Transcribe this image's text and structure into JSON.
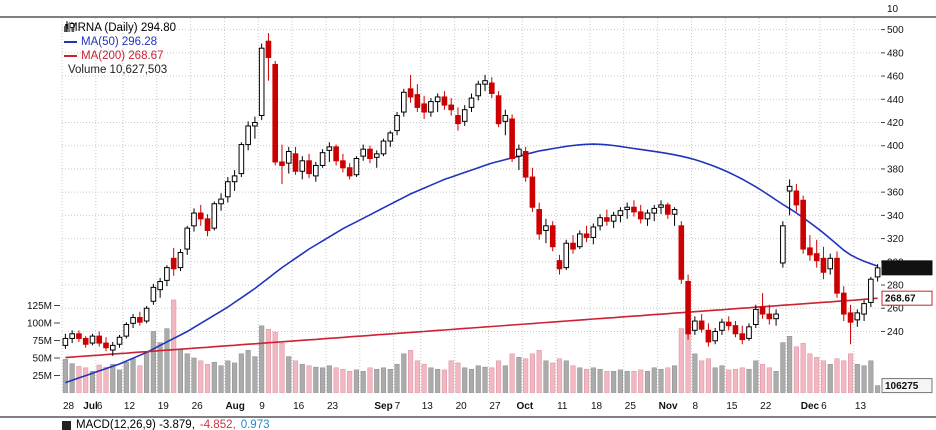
{
  "legend": {
    "symbol_line": "MRNA (Daily) 294.80",
    "ma50_line": "MA(50) 296.28",
    "ma200_line": "MA(200) 268.67",
    "volume_line": "Volume 10,627,503"
  },
  "macd": {
    "part_black": "MACD(12,26,9) -3.879,",
    "part_red": "-4.852,",
    "part_blue": "0.973"
  },
  "axes": {
    "top_stray_label": "10",
    "price_ticks": [
      500,
      480,
      460,
      440,
      420,
      400,
      380,
      360,
      340,
      320,
      300,
      280,
      260,
      240
    ],
    "volume_ticks": [
      "125M",
      "100M",
      "75M",
      "50M",
      "25M"
    ],
    "x_ticks": [
      {
        "i": 0,
        "label": "28"
      },
      {
        "i": 3,
        "label": "Jul",
        "bold": true
      },
      {
        "i": 5,
        "label": "6"
      },
      {
        "i": 9,
        "label": "12"
      },
      {
        "i": 14,
        "label": "19"
      },
      {
        "i": 19,
        "label": "26"
      },
      {
        "i": 24,
        "label": "Aug",
        "bold": true
      },
      {
        "i": 29,
        "label": "9"
      },
      {
        "i": 34,
        "label": "16"
      },
      {
        "i": 39,
        "label": "23"
      },
      {
        "i": 46,
        "label": "Sep",
        "bold": true
      },
      {
        "i": 49,
        "label": "7"
      },
      {
        "i": 53,
        "label": "13"
      },
      {
        "i": 58,
        "label": "20"
      },
      {
        "i": 63,
        "label": "27"
      },
      {
        "i": 67,
        "label": "Oct",
        "bold": true
      },
      {
        "i": 73,
        "label": "11"
      },
      {
        "i": 78,
        "label": "18"
      },
      {
        "i": 83,
        "label": "25"
      },
      {
        "i": 88,
        "label": "Nov",
        "bold": true
      },
      {
        "i": 93,
        "label": "8"
      },
      {
        "i": 98,
        "label": "15"
      },
      {
        "i": 103,
        "label": "22"
      },
      {
        "i": 109,
        "label": "Dec",
        "bold": true
      },
      {
        "i": 112,
        "label": "6"
      },
      {
        "i": 117,
        "label": "13"
      }
    ],
    "tags": {
      "last_price": "294.80",
      "ma200": "268.67",
      "volume": "106275"
    }
  },
  "chart_data": {
    "type": "candlestick",
    "symbol": "MRNA",
    "timeframe": "Daily",
    "last_close": 294.8,
    "ylim": [
      187,
      510
    ],
    "candle_fields": [
      "date",
      "open",
      "high",
      "low",
      "close",
      "volume_millions"
    ],
    "candles": [
      [
        "Jun 28",
        228,
        238,
        225,
        234,
        48
      ],
      [
        "Jun 29",
        234,
        241,
        230,
        238,
        42
      ],
      [
        "Jun 30",
        238,
        241,
        231,
        234,
        38
      ],
      [
        "Jul 1",
        234,
        236,
        226,
        229,
        36
      ],
      [
        "Jul 2",
        230,
        238,
        228,
        236,
        31
      ],
      [
        "Jul 6",
        236,
        240,
        227,
        230,
        40
      ],
      [
        "Jul 7",
        230,
        235,
        223,
        226,
        37
      ],
      [
        "Jul 8",
        224,
        231,
        219,
        228,
        41
      ],
      [
        "Jul 9",
        229,
        237,
        226,
        235,
        33
      ],
      [
        "Jul 12",
        236,
        248,
        234,
        246,
        44
      ],
      [
        "Jul 13",
        247,
        255,
        243,
        252,
        49
      ],
      [
        "Jul 14",
        252,
        257,
        245,
        248,
        39
      ],
      [
        "Jul 15",
        249,
        262,
        247,
        260,
        58
      ],
      [
        "Jul 16",
        266,
        281,
        263,
        278,
        88
      ],
      [
        "Jul 19",
        276,
        286,
        269,
        283,
        72
      ],
      [
        "Jul 20",
        284,
        297,
        279,
        295,
        92
      ],
      [
        "Jul 21",
        303,
        312,
        288,
        294,
        133
      ],
      [
        "Jul 22",
        295,
        311,
        292,
        308,
        62
      ],
      [
        "Jul 23",
        311,
        331,
        306,
        329,
        56
      ],
      [
        "Jul 26",
        331,
        346,
        326,
        342,
        50
      ],
      [
        "Jul 27",
        342,
        349,
        331,
        337,
        46
      ],
      [
        "Jul 28",
        337,
        341,
        322,
        327,
        41
      ],
      [
        "Jul 29",
        329,
        352,
        327,
        350,
        44
      ],
      [
        "Jul 30",
        350,
        359,
        344,
        354,
        39
      ],
      [
        "Aug 2",
        356,
        373,
        351,
        369,
        46
      ],
      [
        "Aug 3",
        369,
        379,
        361,
        374,
        43
      ],
      [
        "Aug 4",
        376,
        403,
        373,
        401,
        56
      ],
      [
        "Aug 5",
        401,
        421,
        396,
        417,
        61
      ],
      [
        "Aug 6",
        417,
        425,
        406,
        420,
        52
      ],
      [
        "Aug 9",
        426,
        488,
        422,
        484,
        96
      ],
      [
        "Aug 10",
        490,
        497,
        456,
        476,
        91
      ],
      [
        "Aug 11",
        470,
        473,
        383,
        386,
        87
      ],
      [
        "Aug 12",
        386,
        401,
        367,
        383,
        71
      ],
      [
        "Aug 13",
        385,
        399,
        376,
        395,
        52
      ],
      [
        "Aug 16",
        393,
        399,
        375,
        378,
        46
      ],
      [
        "Aug 17",
        378,
        391,
        371,
        387,
        41
      ],
      [
        "Aug 18",
        387,
        393,
        372,
        376,
        39
      ],
      [
        "Aug 19",
        374,
        386,
        369,
        383,
        37
      ],
      [
        "Aug 20",
        383,
        397,
        381,
        394,
        36
      ],
      [
        "Aug 23",
        396,
        403,
        386,
        399,
        39
      ],
      [
        "Aug 24",
        399,
        401,
        383,
        387,
        36
      ],
      [
        "Aug 25",
        387,
        393,
        377,
        381,
        34
      ],
      [
        "Aug 26",
        381,
        385,
        371,
        374,
        31
      ],
      [
        "Aug 27",
        375,
        391,
        373,
        389,
        33
      ],
      [
        "Aug 30",
        391,
        401,
        387,
        397,
        31
      ],
      [
        "Aug 31",
        397,
        400,
        385,
        389,
        36
      ],
      [
        "Sep 1",
        390,
        396,
        381,
        393,
        34
      ],
      [
        "Sep 2",
        393,
        406,
        391,
        404,
        36
      ],
      [
        "Sep 3",
        404,
        413,
        399,
        411,
        34
      ],
      [
        "Sep 7",
        413,
        429,
        409,
        426,
        41
      ],
      [
        "Sep 8",
        429,
        449,
        425,
        446,
        56
      ],
      [
        "Sep 9",
        449,
        461,
        437,
        442,
        61
      ],
      [
        "Sep 10",
        444,
        453,
        429,
        433,
        46
      ],
      [
        "Sep 13",
        436,
        443,
        423,
        429,
        41
      ],
      [
        "Sep 14",
        429,
        441,
        425,
        438,
        36
      ],
      [
        "Sep 15",
        438,
        445,
        429,
        442,
        34
      ],
      [
        "Sep 16",
        442,
        447,
        431,
        435,
        33
      ],
      [
        "Sep 17",
        435,
        441,
        426,
        431,
        46
      ],
      [
        "Sep 20",
        426,
        433,
        413,
        419,
        43
      ],
      [
        "Sep 21",
        421,
        435,
        417,
        431,
        36
      ],
      [
        "Sep 22",
        433,
        445,
        429,
        441,
        34
      ],
      [
        "Sep 23",
        443,
        456,
        439,
        453,
        39
      ],
      [
        "Sep 24",
        453,
        461,
        447,
        456,
        37
      ],
      [
        "Sep 27",
        454,
        459,
        441,
        445,
        36
      ],
      [
        "Sep 28",
        443,
        447,
        416,
        419,
        46
      ],
      [
        "Sep 29",
        421,
        431,
        409,
        426,
        39
      ],
      [
        "Sep 30",
        423,
        427,
        386,
        389,
        56
      ],
      [
        "Oct 1",
        391,
        401,
        379,
        397,
        51
      ],
      [
        "Oct 4",
        395,
        399,
        369,
        373,
        49
      ],
      [
        "Oct 5",
        373,
        381,
        343,
        347,
        56
      ],
      [
        "Oct 6",
        345,
        351,
        319,
        324,
        61
      ],
      [
        "Oct 7",
        327,
        337,
        316,
        331,
        46
      ],
      [
        "Oct 8",
        331,
        335,
        309,
        313,
        43
      ],
      [
        "Oct 11",
        301,
        306,
        289,
        294,
        49
      ],
      [
        "Oct 12",
        295,
        319,
        293,
        316,
        46
      ],
      [
        "Oct 13",
        316,
        323,
        307,
        311,
        39
      ],
      [
        "Oct 14",
        313,
        327,
        311,
        324,
        36
      ],
      [
        "Oct 15",
        324,
        331,
        317,
        321,
        34
      ],
      [
        "Oct 18",
        321,
        333,
        315,
        330,
        36
      ],
      [
        "Oct 19",
        331,
        341,
        327,
        338,
        34
      ],
      [
        "Oct 20",
        338,
        345,
        331,
        335,
        31
      ],
      [
        "Oct 21",
        335,
        343,
        329,
        340,
        31
      ],
      [
        "Oct 22",
        340,
        347,
        334,
        344,
        33
      ],
      [
        "Oct 25",
        345,
        351,
        337,
        347,
        31
      ],
      [
        "Oct 26",
        347,
        353,
        339,
        343,
        31
      ],
      [
        "Oct 27",
        343,
        349,
        333,
        337,
        33
      ],
      [
        "Oct 28",
        337,
        345,
        331,
        342,
        31
      ],
      [
        "Oct 29",
        342,
        349,
        335,
        346,
        36
      ],
      [
        "Nov 1",
        347,
        353,
        341,
        349,
        34
      ],
      [
        "Nov 2",
        349,
        351,
        337,
        341,
        36
      ],
      [
        "Nov 3",
        341,
        347,
        331,
        345,
        39
      ],
      [
        "Nov 4",
        331,
        335,
        281,
        285,
        92
      ],
      [
        "Nov 5",
        283,
        289,
        233,
        238,
        88
      ],
      [
        "Nov 8",
        241,
        253,
        237,
        249,
        56
      ],
      [
        "Nov 9",
        249,
        255,
        239,
        242,
        46
      ],
      [
        "Nov 10",
        241,
        247,
        227,
        231,
        49
      ],
      [
        "Nov 11",
        232,
        243,
        229,
        240,
        36
      ],
      [
        "Nov 12",
        241,
        251,
        237,
        248,
        39
      ],
      [
        "Nov 15",
        248,
        253,
        241,
        245,
        33
      ],
      [
        "Nov 16",
        245,
        249,
        235,
        238,
        34
      ],
      [
        "Nov 17",
        238,
        245,
        229,
        233,
        36
      ],
      [
        "Nov 18",
        234,
        247,
        232,
        244,
        34
      ],
      [
        "Nov 19",
        246,
        263,
        243,
        259,
        46
      ],
      [
        "Nov 22",
        261,
        273,
        251,
        255,
        41
      ],
      [
        "Nov 23",
        255,
        263,
        246,
        251,
        36
      ],
      [
        "Nov 24",
        251,
        259,
        245,
        255,
        31
      ],
      [
        "Nov 26",
        299,
        335,
        295,
        331,
        72
      ],
      [
        "Nov 29",
        361,
        371,
        340,
        365,
        81
      ],
      [
        "Nov 30",
        361,
        367,
        343,
        349,
        66
      ],
      [
        "Dec 1",
        353,
        357,
        307,
        311,
        71
      ],
      [
        "Dec 2",
        312,
        323,
        301,
        306,
        56
      ],
      [
        "Dec 3",
        307,
        319,
        295,
        301,
        51
      ],
      [
        "Dec 6",
        303,
        313,
        285,
        291,
        46
      ],
      [
        "Dec 7",
        294,
        307,
        289,
        303,
        41
      ],
      [
        "Dec 8",
        303,
        309,
        269,
        273,
        49
      ],
      [
        "Dec 9",
        273,
        279,
        249,
        255,
        46
      ],
      [
        "Dec 10",
        256,
        263,
        229,
        248,
        56
      ],
      [
        "Dec 13",
        250,
        259,
        244,
        256,
        41
      ],
      [
        "Dec 14",
        255,
        267,
        249,
        264,
        39
      ],
      [
        "Dec 15",
        265,
        287,
        261,
        285,
        46
      ],
      [
        "Dec 16",
        287,
        298,
        283,
        294.8,
        10.6
      ]
    ],
    "series": [
      {
        "name": "MA(50)",
        "color": "#2233bb",
        "last_value": 296.28,
        "values": [
          196,
          198,
          200,
          202,
          204,
          206,
          208,
          210,
          212,
          214.5,
          217,
          219.5,
          222,
          225,
          228,
          231,
          234,
          237,
          240,
          243.5,
          247,
          250.5,
          254,
          257.5,
          261,
          265,
          269,
          273,
          277,
          281.5,
          286,
          290.5,
          295,
          299,
          303,
          307,
          311,
          314.5,
          318,
          321.5,
          325,
          328.5,
          331.5,
          334.5,
          337.5,
          340.5,
          343.5,
          346.5,
          349.5,
          352.5,
          355.5,
          358.5,
          361,
          363.5,
          366,
          368.5,
          371,
          373,
          375,
          377,
          379,
          381,
          383,
          385,
          386.5,
          388,
          389.5,
          391,
          392.5,
          394,
          395.5,
          396.5,
          397.5,
          398.5,
          399.5,
          400.2,
          400.8,
          401.2,
          401.4,
          401.2,
          400.8,
          400.2,
          399.4,
          398.5,
          397.6,
          396.8,
          396,
          395.1,
          394.2,
          393.2,
          392.2,
          391,
          389.6,
          388,
          386.2,
          384.2,
          382,
          379.6,
          377,
          374.2,
          371.2,
          368,
          364.6,
          361,
          357.2,
          353.2,
          349.4,
          345.8,
          342,
          338,
          333.8,
          329.4,
          324.8,
          320,
          315,
          310,
          306,
          303,
          300.5,
          298.3,
          296.28
        ]
      },
      {
        "name": "MA(200)",
        "color": "#cc2233",
        "last_value": 268.67,
        "values": [
          217.5,
          217.9,
          218.4,
          218.8,
          219.2,
          219.6,
          220.1,
          220.5,
          220.9,
          221.3,
          221.8,
          222.2,
          222.6,
          223.0,
          223.5,
          223.9,
          224.3,
          224.7,
          225.2,
          225.6,
          226.0,
          226.4,
          226.9,
          227.3,
          227.7,
          228.1,
          228.6,
          229.0,
          229.4,
          229.8,
          230.3,
          230.7,
          231.1,
          231.5,
          232.0,
          232.4,
          232.8,
          233.2,
          233.7,
          234.1,
          234.5,
          234.9,
          235.4,
          235.8,
          236.2,
          236.6,
          237.1,
          237.5,
          237.9,
          238.3,
          238.8,
          239.2,
          239.6,
          240.0,
          240.5,
          240.9,
          241.3,
          241.7,
          242.2,
          242.6,
          243.0,
          243.4,
          243.9,
          244.3,
          244.7,
          245.1,
          245.6,
          246.0,
          246.4,
          246.8,
          247.3,
          247.7,
          248.1,
          248.5,
          249.0,
          249.4,
          249.8,
          250.2,
          250.7,
          251.1,
          251.5,
          251.9,
          252.4,
          252.8,
          253.2,
          253.6,
          254.1,
          254.5,
          254.9,
          255.3,
          255.8,
          256.2,
          256.6,
          257.0,
          257.5,
          257.9,
          258.3,
          258.7,
          259.2,
          259.6,
          260.0,
          260.4,
          260.9,
          261.3,
          261.7,
          262.1,
          262.6,
          263.0,
          263.4,
          263.8,
          264.3,
          264.7,
          265.1,
          265.5,
          266.0,
          266.4,
          266.8,
          267.2,
          267.7,
          268.1,
          268.67
        ]
      }
    ],
    "week_start_indices": [
      0,
      5,
      9,
      14,
      19,
      24,
      29,
      34,
      39,
      44,
      49,
      53,
      58,
      63,
      68,
      73,
      78,
      83,
      88,
      93,
      98,
      103,
      107,
      112,
      117
    ]
  }
}
